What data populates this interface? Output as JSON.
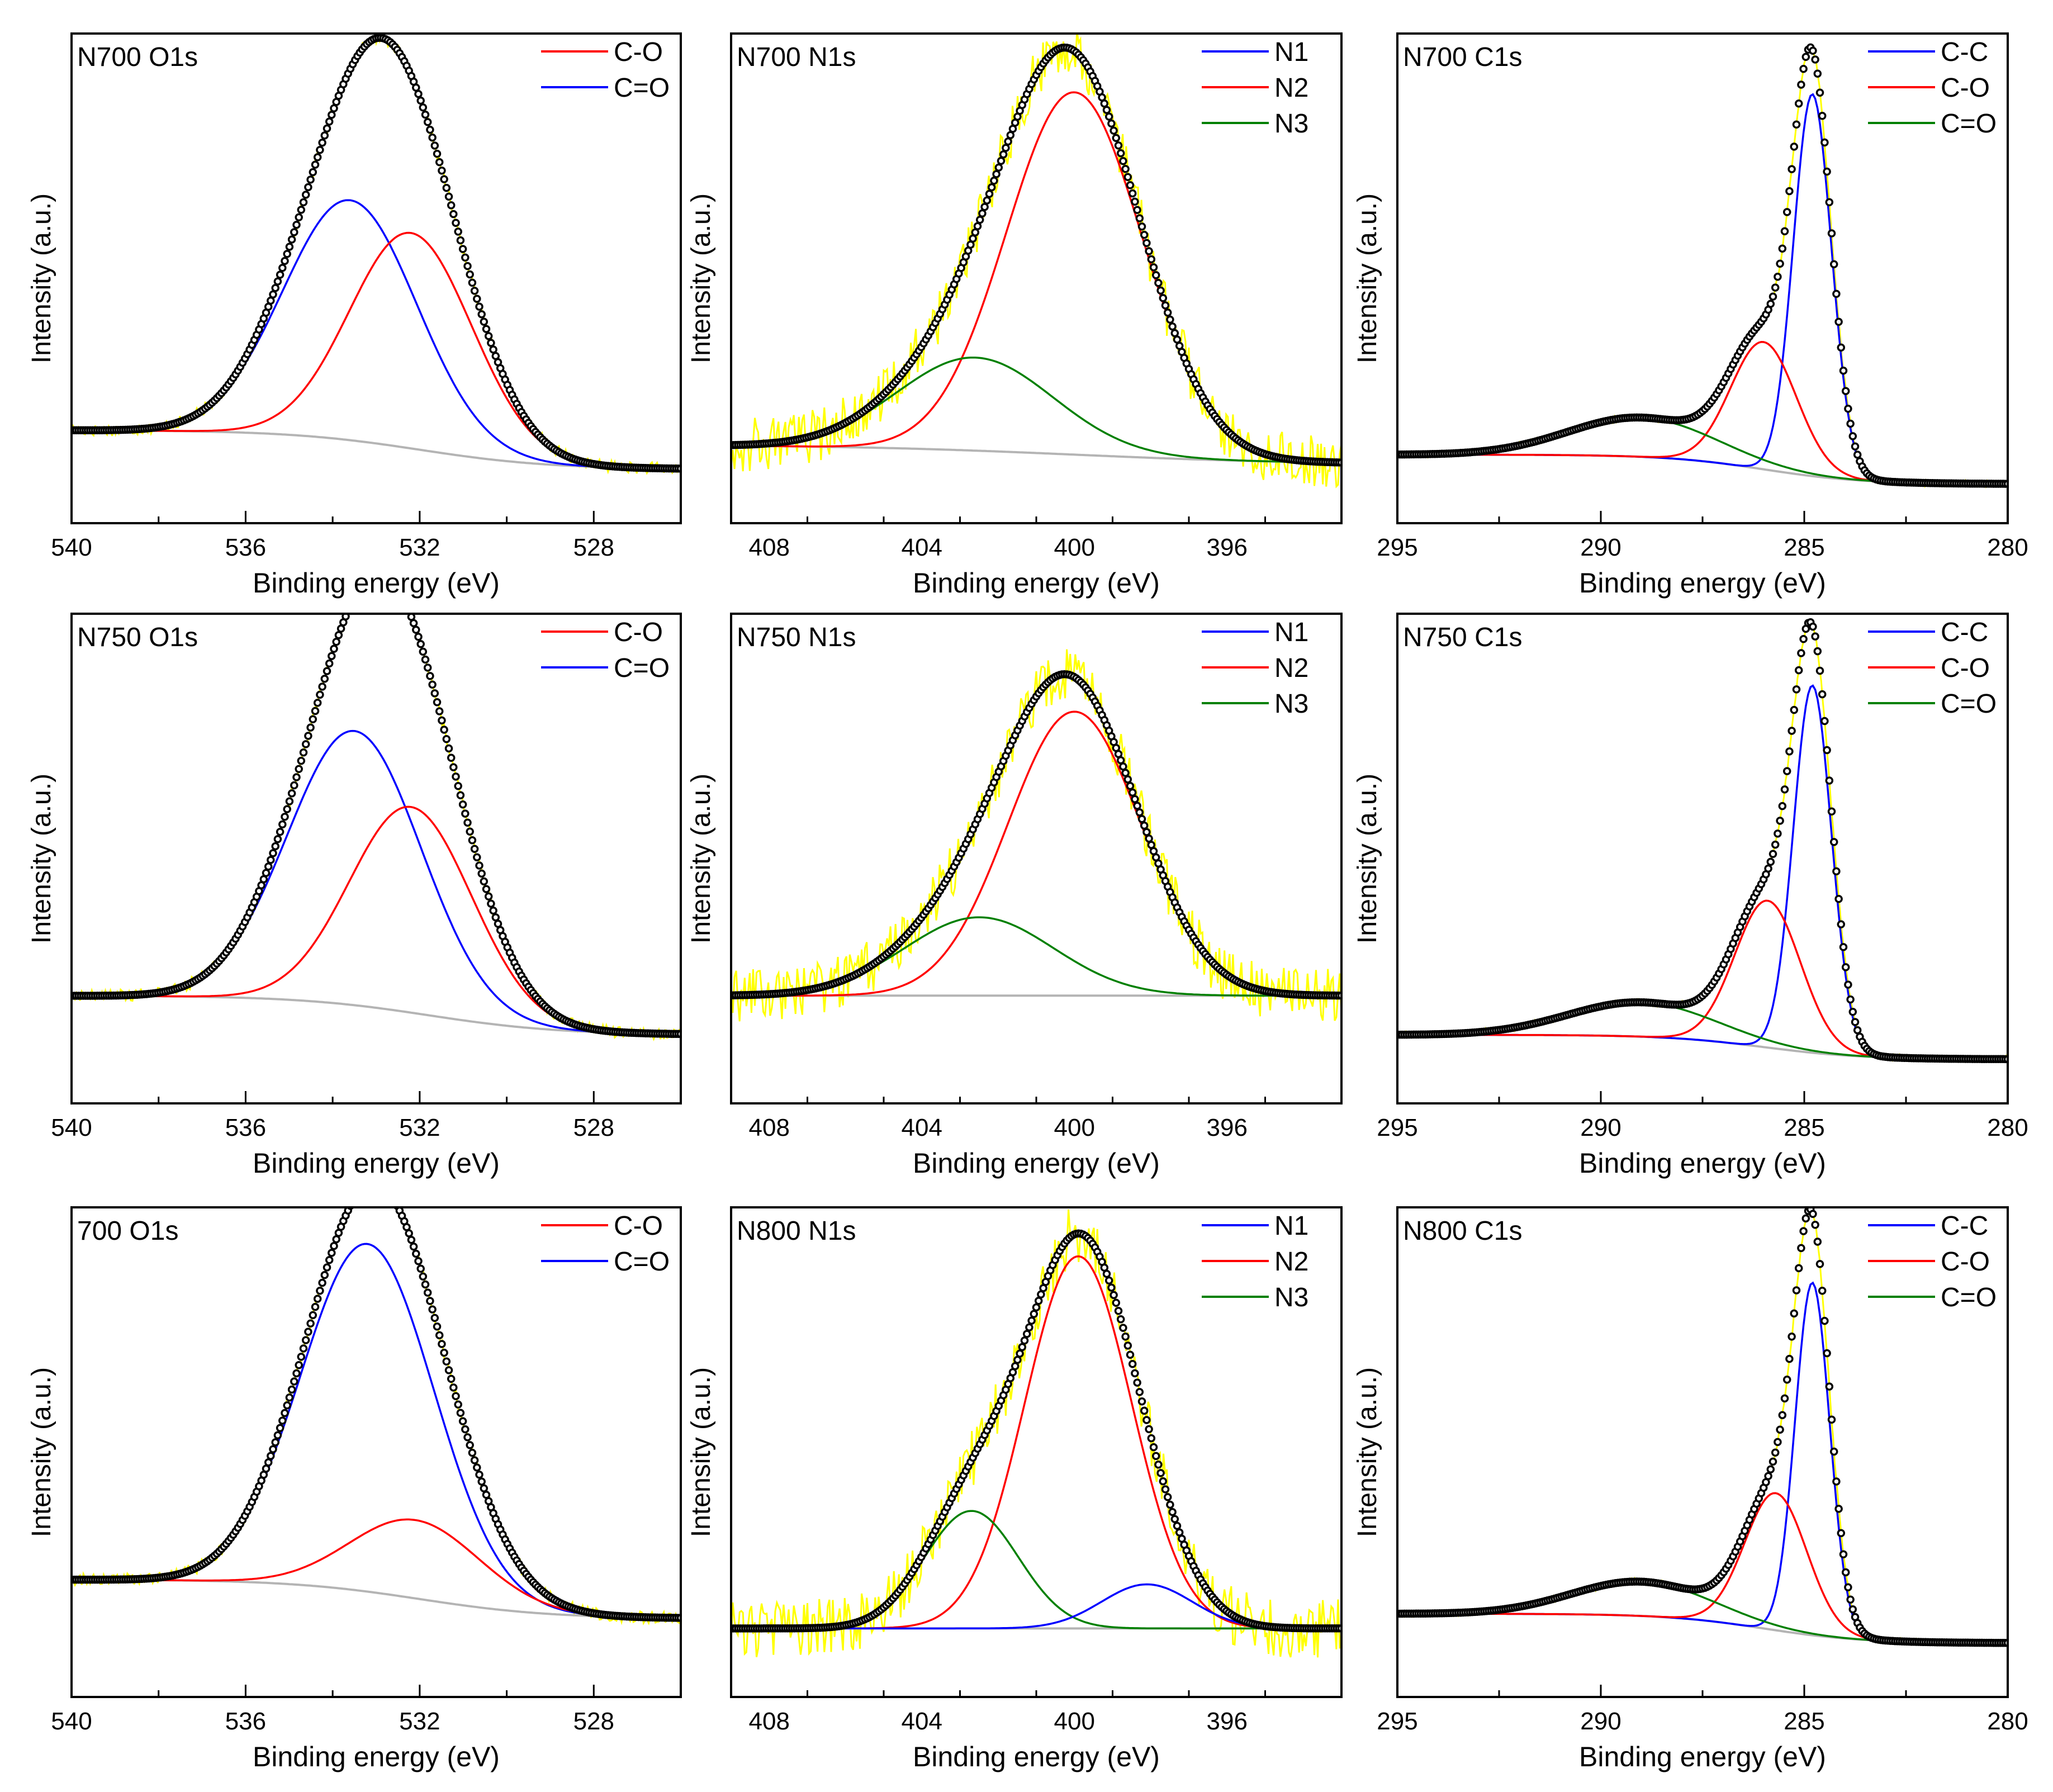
{
  "figure": {
    "xlabel": "Binding energy (eV)",
    "ylabel": "Intensity (a.u.)"
  },
  "colors": {
    "raw": "#ffff00",
    "envelope": "#000000",
    "background": "#b4b4b4",
    "red": "#ff0000",
    "blue": "#0000ff",
    "green": "#008000"
  },
  "chart_data": [
    {
      "id": "n700-o1s",
      "type": "line",
      "title": "N700 O1s",
      "xlabel": "Binding energy (eV)",
      "ylabel": "Intensity (a.u.)",
      "xlim": [
        540,
        526
      ],
      "xticks": [
        540,
        536,
        532,
        528
      ],
      "ylim": [
        0,
        1
      ],
      "legend": [
        {
          "name": "C-O",
          "color": "#ff0000"
        },
        {
          "name": "C=O",
          "color": "#0000ff"
        }
      ],
      "background": {
        "high": 0.19,
        "low": 0.11,
        "center": 532.0,
        "width": 1.5
      },
      "peaks": [
        {
          "name": "C=O",
          "center": 533.6,
          "fwhm": 3.6,
          "height": 0.49,
          "color": "#0000ff"
        },
        {
          "name": "C-O",
          "center": 532.2,
          "fwhm": 3.3,
          "height": 0.44,
          "color": "#ff0000"
        }
      ],
      "noise": 0.012
    },
    {
      "id": "n700-n1s",
      "type": "line",
      "title": "N700 N1s",
      "xlabel": "Binding energy (eV)",
      "ylabel": "Intensity (a.u.)",
      "xlim": [
        409,
        393
      ],
      "xticks": [
        408,
        404,
        400,
        396
      ],
      "ylim": [
        0,
        1
      ],
      "legend": [
        {
          "name": "N1",
          "color": "#0000ff"
        },
        {
          "name": "N2",
          "color": "#ff0000"
        },
        {
          "name": "N3",
          "color": "#008000"
        }
      ],
      "background": {
        "high": 0.16,
        "low": 0.12,
        "center": 400.0,
        "width": 3.0
      },
      "peaks": [
        {
          "name": "N2",
          "center": 400.0,
          "fwhm": 4.2,
          "height": 0.74,
          "color": "#ff0000"
        },
        {
          "name": "N3",
          "center": 402.6,
          "fwhm": 4.8,
          "height": 0.19,
          "color": "#008000"
        }
      ],
      "noise": 0.055
    },
    {
      "id": "n700-c1s",
      "type": "line",
      "title": "N700 C1s",
      "xlabel": "Binding energy (eV)",
      "ylabel": "Intensity (a.u.)",
      "xlim": [
        295,
        280
      ],
      "xticks": [
        295,
        290,
        285,
        280
      ],
      "ylim": [
        0,
        1
      ],
      "legend": [
        {
          "name": "C-C",
          "color": "#0000ff"
        },
        {
          "name": "C-O",
          "color": "#ff0000"
        },
        {
          "name": "C=O",
          "color": "#008000"
        }
      ],
      "background": {
        "high": 0.14,
        "low": 0.08,
        "center": 286.0,
        "width": 1.2
      },
      "peaks": [
        {
          "name": "C-C",
          "center": 284.8,
          "fwhm": 1.1,
          "height": 0.78,
          "color": "#0000ff"
        },
        {
          "name": "C-O",
          "center": 286.0,
          "fwhm": 1.9,
          "height": 0.26,
          "color": "#ff0000"
        },
        {
          "name": "C=O",
          "center": 289.0,
          "fwhm": 4.2,
          "height": 0.08,
          "color": "#008000"
        }
      ],
      "noise": 0.006
    },
    {
      "id": "n750-o1s",
      "type": "line",
      "title": "N750 O1s",
      "xlabel": "Binding energy (eV)",
      "ylabel": "Intensity (a.u.)",
      "xlim": [
        540,
        526
      ],
      "xticks": [
        540,
        536,
        532,
        528
      ],
      "ylim": [
        0,
        1
      ],
      "legend": [
        {
          "name": "C-O",
          "color": "#ff0000"
        },
        {
          "name": "C=O",
          "color": "#0000ff"
        }
      ],
      "background": {
        "high": 0.22,
        "low": 0.14,
        "center": 531.8,
        "width": 1.5
      },
      "peaks": [
        {
          "name": "C=O",
          "center": 533.5,
          "fwhm": 3.6,
          "height": 0.56,
          "color": "#0000ff"
        },
        {
          "name": "C-O",
          "center": 532.2,
          "fwhm": 3.3,
          "height": 0.42,
          "color": "#ff0000"
        }
      ],
      "noise": 0.012
    },
    {
      "id": "n750-n1s",
      "type": "line",
      "title": "N750 N1s",
      "xlabel": "Binding energy (eV)",
      "ylabel": "Intensity (a.u.)",
      "xlim": [
        409,
        393
      ],
      "xticks": [
        408,
        404,
        400,
        396
      ],
      "ylim": [
        0,
        1
      ],
      "legend": [
        {
          "name": "N1",
          "color": "#0000ff"
        },
        {
          "name": "N2",
          "color": "#ff0000"
        },
        {
          "name": "N3",
          "color": "#008000"
        }
      ],
      "background": {
        "high": 0.22,
        "low": 0.22,
        "center": 400.0,
        "width": 3.0
      },
      "peaks": [
        {
          "name": "N2",
          "center": 400.0,
          "fwhm": 4.1,
          "height": 0.58,
          "color": "#ff0000"
        },
        {
          "name": "N3",
          "center": 402.5,
          "fwhm": 4.6,
          "height": 0.16,
          "color": "#008000"
        }
      ],
      "noise": 0.055
    },
    {
      "id": "n750-c1s",
      "type": "line",
      "title": "N750 C1s",
      "xlabel": "Binding energy (eV)",
      "ylabel": "Intensity (a.u.)",
      "xlim": [
        295,
        280
      ],
      "xticks": [
        295,
        290,
        285,
        280
      ],
      "ylim": [
        0,
        1
      ],
      "legend": [
        {
          "name": "C-C",
          "color": "#0000ff"
        },
        {
          "name": "C-O",
          "color": "#ff0000"
        },
        {
          "name": "C=O",
          "color": "#008000"
        }
      ],
      "background": {
        "high": 0.14,
        "low": 0.09,
        "center": 286.0,
        "width": 1.2
      },
      "peaks": [
        {
          "name": "C-C",
          "center": 284.8,
          "fwhm": 1.1,
          "height": 0.75,
          "color": "#0000ff"
        },
        {
          "name": "C-O",
          "center": 285.9,
          "fwhm": 1.9,
          "height": 0.3,
          "color": "#ff0000"
        },
        {
          "name": "C=O",
          "center": 289.0,
          "fwhm": 4.2,
          "height": 0.07,
          "color": "#008000"
        }
      ],
      "noise": 0.006
    },
    {
      "id": "700-o1s",
      "type": "line",
      "title": "700 O1s",
      "xlabel": "Binding energy (eV)",
      "ylabel": "Intensity (a.u.)",
      "xlim": [
        540,
        526
      ],
      "xticks": [
        540,
        536,
        532,
        528
      ],
      "ylim": [
        0,
        1
      ],
      "legend": [
        {
          "name": "C-O",
          "color": "#ff0000"
        },
        {
          "name": "C=O",
          "color": "#0000ff"
        }
      ],
      "background": {
        "high": 0.24,
        "low": 0.16,
        "center": 532.0,
        "width": 1.5
      },
      "peaks": [
        {
          "name": "C=O",
          "center": 533.2,
          "fwhm": 3.6,
          "height": 0.71,
          "color": "#0000ff"
        },
        {
          "name": "C-O",
          "center": 532.1,
          "fwhm": 3.5,
          "height": 0.16,
          "color": "#ff0000"
        }
      ],
      "noise": 0.012
    },
    {
      "id": "n800-n1s",
      "type": "line",
      "title": "N800 N1s",
      "xlabel": "Binding energy (eV)",
      "ylabel": "Intensity (a.u.)",
      "xlim": [
        409,
        393
      ],
      "xticks": [
        408,
        404,
        400,
        396
      ],
      "ylim": [
        0,
        1
      ],
      "legend": [
        {
          "name": "N1",
          "color": "#0000ff"
        },
        {
          "name": "N2",
          "color": "#ff0000"
        },
        {
          "name": "N3",
          "color": "#008000"
        }
      ],
      "background": {
        "high": 0.14,
        "low": 0.14,
        "center": 400.0,
        "width": 3.0
      },
      "peaks": [
        {
          "name": "N2",
          "center": 399.9,
          "fwhm": 3.3,
          "height": 0.76,
          "color": "#ff0000"
        },
        {
          "name": "N3",
          "center": 402.7,
          "fwhm": 2.9,
          "height": 0.24,
          "color": "#008000"
        },
        {
          "name": "N1",
          "center": 398.1,
          "fwhm": 2.8,
          "height": 0.09,
          "color": "#0000ff"
        }
      ],
      "noise": 0.06
    },
    {
      "id": "n800-c1s",
      "type": "line",
      "title": "N800 C1s",
      "xlabel": "Binding energy (eV)",
      "ylabel": "Intensity (a.u.)",
      "xlim": [
        295,
        280
      ],
      "xticks": [
        295,
        290,
        285,
        280
      ],
      "ylim": [
        0,
        1
      ],
      "legend": [
        {
          "name": "C-C",
          "color": "#0000ff"
        },
        {
          "name": "C-O",
          "color": "#ff0000"
        },
        {
          "name": "C=O",
          "color": "#008000"
        }
      ],
      "background": {
        "high": 0.17,
        "low": 0.11,
        "center": 286.0,
        "width": 1.2
      },
      "peaks": [
        {
          "name": "C-C",
          "center": 284.8,
          "fwhm": 1.0,
          "height": 0.72,
          "color": "#0000ff"
        },
        {
          "name": "C-O",
          "center": 285.7,
          "fwhm": 1.8,
          "height": 0.28,
          "color": "#ff0000"
        },
        {
          "name": "C=O",
          "center": 289.0,
          "fwhm": 4.0,
          "height": 0.07,
          "color": "#008000"
        }
      ],
      "noise": 0.006
    }
  ]
}
